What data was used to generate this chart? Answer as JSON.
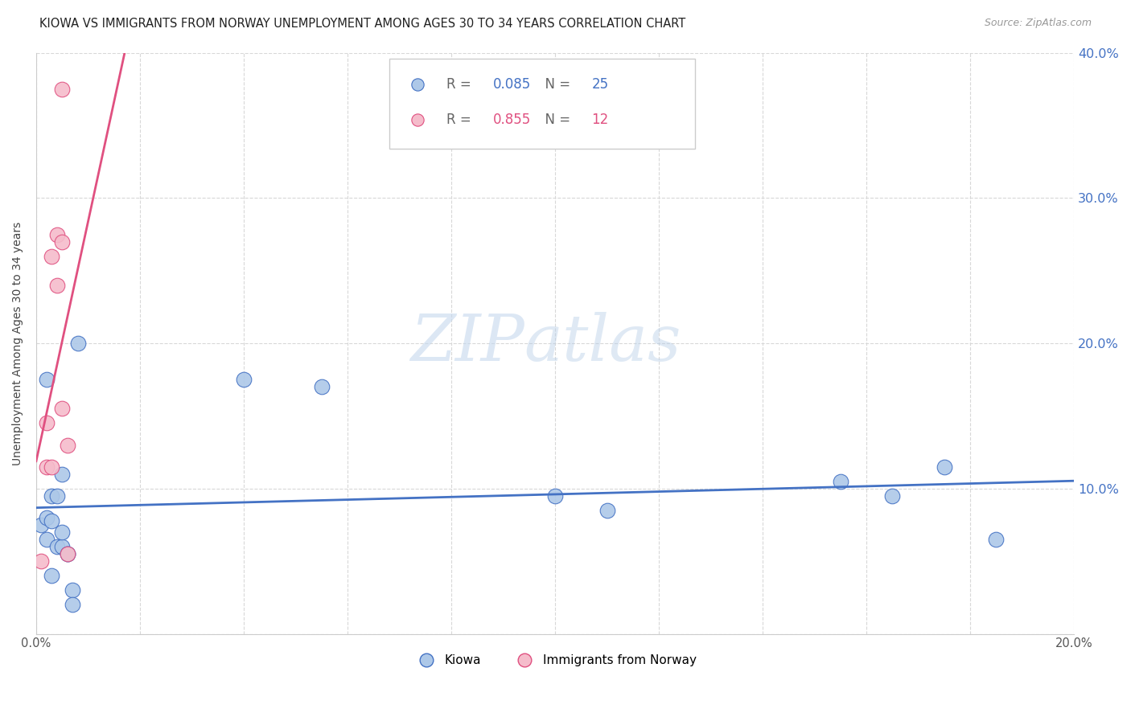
{
  "title": "KIOWA VS IMMIGRANTS FROM NORWAY UNEMPLOYMENT AMONG AGES 30 TO 34 YEARS CORRELATION CHART",
  "source": "Source: ZipAtlas.com",
  "ylabel": "Unemployment Among Ages 30 to 34 years",
  "xlim": [
    0.0,
    0.2
  ],
  "ylim": [
    0.0,
    0.4
  ],
  "yticks": [
    0.0,
    0.1,
    0.2,
    0.3,
    0.4
  ],
  "kiowa_x": [
    0.001,
    0.002,
    0.002,
    0.003,
    0.003,
    0.003,
    0.004,
    0.004,
    0.005,
    0.005,
    0.005,
    0.006,
    0.006,
    0.007,
    0.007,
    0.008,
    0.04,
    0.055,
    0.1,
    0.11,
    0.155,
    0.165,
    0.175,
    0.185,
    0.002
  ],
  "kiowa_y": [
    0.075,
    0.065,
    0.08,
    0.078,
    0.095,
    0.04,
    0.095,
    0.06,
    0.11,
    0.06,
    0.07,
    0.055,
    0.055,
    0.03,
    0.02,
    0.2,
    0.175,
    0.17,
    0.095,
    0.085,
    0.105,
    0.095,
    0.115,
    0.065,
    0.175
  ],
  "norway_x": [
    0.001,
    0.002,
    0.002,
    0.003,
    0.003,
    0.004,
    0.004,
    0.005,
    0.005,
    0.005,
    0.006,
    0.006
  ],
  "norway_y": [
    0.05,
    0.115,
    0.145,
    0.26,
    0.115,
    0.24,
    0.275,
    0.27,
    0.155,
    0.375,
    0.13,
    0.055
  ],
  "kiowa_color": "#adc8e8",
  "norway_color": "#f5bccb",
  "kiowa_line_color": "#4472c4",
  "norway_line_color": "#e05080",
  "kiowa_R": 0.085,
  "kiowa_N": 25,
  "norway_R": 0.855,
  "norway_N": 12,
  "watermark_zip": "ZIP",
  "watermark_atlas": "atlas",
  "bg_color": "#ffffff",
  "grid_color": "#d8d8d8",
  "title_fontsize": 10.5,
  "axis_label_fontsize": 10,
  "tick_fontsize": 10.5
}
